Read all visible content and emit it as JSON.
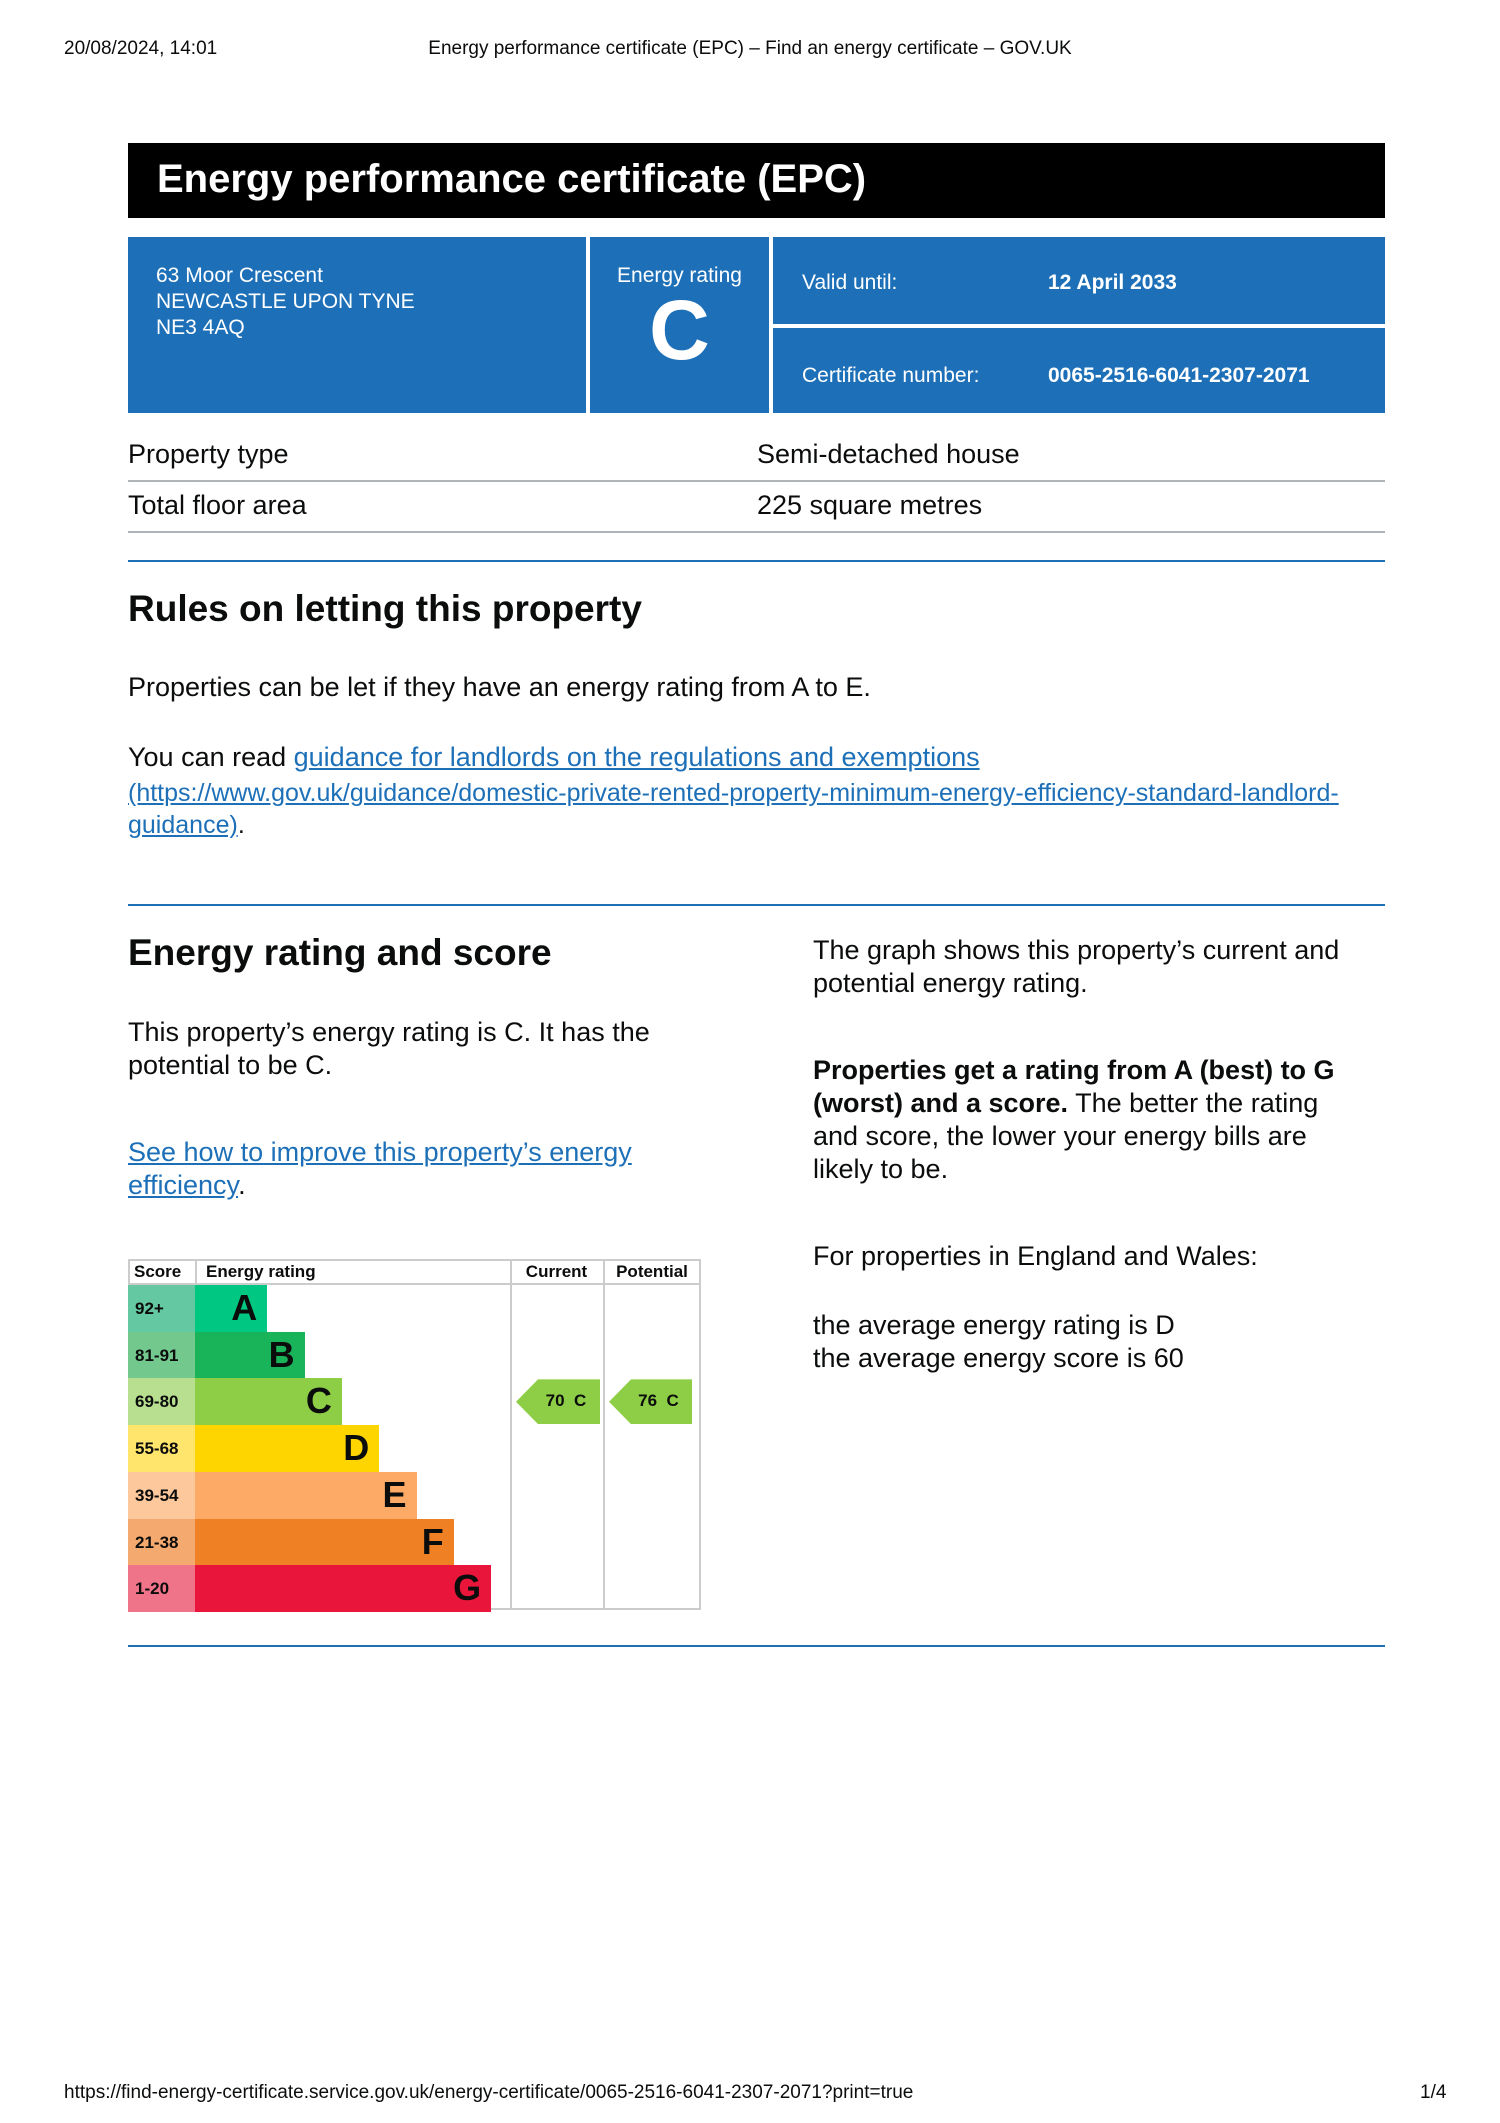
{
  "browser": {
    "datetime": "20/08/2024, 14:01",
    "page_title": "Energy performance certificate (EPC) – Find an energy certificate – GOV.UK",
    "url": "https://find-energy-certificate.service.gov.uk/energy-certificate/0065-2516-6041-2307-2071?print=true",
    "page_number": "1/4"
  },
  "title": "Energy performance certificate (EPC)",
  "address": {
    "line1": "63 Moor Crescent",
    "line2": "NEWCASTLE UPON TYNE",
    "line3": "NE3 4AQ"
  },
  "rating_box": {
    "label": "Energy rating",
    "value": "C"
  },
  "valid": {
    "label": "Valid until:",
    "value": "12 April 2033"
  },
  "certificate": {
    "label": "Certificate number:",
    "value": "0065-2516-6041-2307-2071"
  },
  "summary": [
    {
      "label": "Property type",
      "value": "Semi-detached house"
    },
    {
      "label": "Total floor area",
      "value": "225 square metres"
    }
  ],
  "rules": {
    "heading": "Rules on letting this property",
    "para1": "Properties can be let if they have an energy rating from A to E.",
    "para2_prefix": "You can read ",
    "link_text": "guidance for landlords on the regulations and exemptions",
    "link_url1": "(https://www.gov.uk/guidance/domestic-private-rented-property-minimum-energy-efficiency-standard-landlord-",
    "link_url2": "guidance)",
    "para2_suffix": "."
  },
  "score": {
    "heading": "Energy rating and score",
    "para1a": "This property’s energy rating is C. It has the",
    "para1b": "potential to be C.",
    "link1": "See how to improve this property’s energy",
    "link2": "efficiency",
    "link_suffix": ".",
    "right1a": "The graph shows this property’s current and",
    "right1b": "potential energy rating.",
    "right2_bold1": "Properties get a rating from A (best) to G",
    "right2_bold2": "(worst) and a score.",
    "right2_rest1": " The better the rating",
    "right2_line3": "and score, the lower your energy bills are",
    "right2_line4": "likely to be.",
    "right3": "For properties in England and Wales:",
    "right4a": "the average energy rating is D",
    "right4b": "the average energy score is 60"
  },
  "chart_data": {
    "type": "bar",
    "headers": [
      "Score",
      "Energy rating",
      "Current",
      "Potential"
    ],
    "bands": [
      {
        "score": "92+",
        "letter": "A",
        "color": "#00c781",
        "tint": "#64c8a2"
      },
      {
        "score": "81-91",
        "letter": "B",
        "color": "#19b459",
        "tint": "#73c88e"
      },
      {
        "score": "69-80",
        "letter": "C",
        "color": "#8dce46",
        "tint": "#b8df8f"
      },
      {
        "score": "55-68",
        "letter": "D",
        "color": "#ffd500",
        "tint": "#ffe56c"
      },
      {
        "score": "39-54",
        "letter": "E",
        "color": "#fcaa65",
        "tint": "#fdc89b"
      },
      {
        "score": "21-38",
        "letter": "F",
        "color": "#ef8023",
        "tint": "#f4aa6f"
      },
      {
        "score": "1-20",
        "letter": "G",
        "color": "#e9153b",
        "tint": "#f07489"
      }
    ],
    "current": {
      "score": 70,
      "letter": "C",
      "label": "70  C"
    },
    "potential": {
      "score": 76,
      "letter": "C",
      "label": "76  C"
    }
  }
}
